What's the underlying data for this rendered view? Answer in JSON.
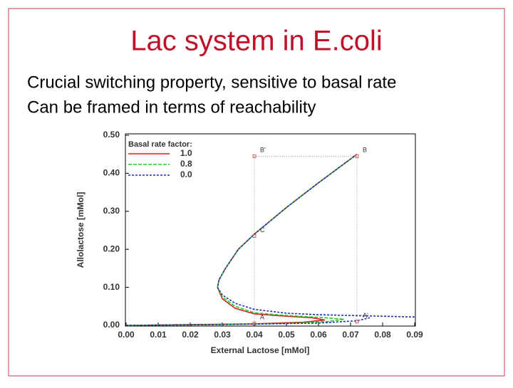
{
  "slide": {
    "title": "Lac system in E.coli",
    "bullets": [
      "Crucial switching property, sensitive to basal rate",
      "Can be framed in terms of reachability"
    ]
  },
  "chart_data": {
    "type": "line",
    "xlabel": "External Lactose [mMol]",
    "ylabel": "Allolactose [mMol]",
    "legend_title": "Basal rate factor:",
    "legend": "upper left",
    "xlim": [
      0,
      0.09
    ],
    "ylim": [
      0,
      0.5
    ],
    "xticks": [
      {
        "value": 0,
        "label": "0.00"
      },
      {
        "value": 0.01,
        "label": "0.01"
      },
      {
        "value": 0.02,
        "label": "0.02"
      },
      {
        "value": 0.03,
        "label": "0.03"
      },
      {
        "value": 0.04,
        "label": "0.04"
      },
      {
        "value": 0.05,
        "label": "0.05"
      },
      {
        "value": 0.06,
        "label": "0.06"
      },
      {
        "value": 0.07,
        "label": "0.07"
      },
      {
        "value": 0.08,
        "label": "0.08"
      },
      {
        "value": 0.09,
        "label": "0.09"
      }
    ],
    "yticks": [
      {
        "value": 0,
        "label": "0.00"
      },
      {
        "value": 0.1,
        "label": "0.10"
      },
      {
        "value": 0.2,
        "label": "0.20"
      },
      {
        "value": 0.3,
        "label": "0.30"
      },
      {
        "value": 0.4,
        "label": "0.40"
      },
      {
        "value": 0.5,
        "label": "0.50"
      }
    ],
    "series": [
      {
        "name": "1.0",
        "color": "#d42020",
        "dash": "none",
        "x": [
          0,
          0.02,
          0.04,
          0.055,
          0.062,
          0.058,
          0.05,
          0.04,
          0.034,
          0.03,
          0.0285,
          0.029,
          0.031,
          0.035,
          0.04,
          0.05,
          0.06,
          0.072
        ],
        "values": [
          0,
          0.002,
          0.004,
          0.008,
          0.014,
          0.02,
          0.024,
          0.03,
          0.045,
          0.07,
          0.1,
          0.12,
          0.15,
          0.2,
          0.24,
          0.31,
          0.375,
          0.45
        ]
      },
      {
        "name": "0.8",
        "color": "#22cc22",
        "dash": "5,2",
        "x": [
          0,
          0.03,
          0.05,
          0.063,
          0.068,
          0.062,
          0.05,
          0.04,
          0.034,
          0.03,
          0.0285,
          0.029,
          0.031,
          0.035,
          0.04,
          0.05,
          0.06,
          0.072
        ],
        "values": [
          0,
          0.002,
          0.005,
          0.01,
          0.016,
          0.02,
          0.026,
          0.033,
          0.05,
          0.075,
          0.1,
          0.12,
          0.15,
          0.2,
          0.24,
          0.31,
          0.375,
          0.45
        ]
      },
      {
        "name": "0.0",
        "color": "#2233aa",
        "dash": "3,2",
        "x": [
          0.09,
          0.075,
          0.06,
          0.05,
          0.04,
          0.034,
          0.03,
          0.0285,
          0.029,
          0.031,
          0.035,
          0.04,
          0.05,
          0.06,
          0.072,
          null,
          0,
          0.03,
          0.06,
          0.072,
          0.076
        ],
        "values": [
          0.022,
          0.025,
          0.028,
          0.032,
          0.042,
          0.058,
          0.08,
          0.1,
          0.12,
          0.15,
          0.2,
          0.24,
          0.31,
          0.375,
          0.45,
          null,
          0,
          0.002,
          0.006,
          0.012,
          0.02
        ]
      }
    ],
    "annotations": [
      {
        "label": "B'",
        "x": 0.04,
        "y": 0.445
      },
      {
        "label": "B",
        "x": 0.072,
        "y": 0.445
      },
      {
        "label": "C",
        "x": 0.04,
        "y": 0.235
      },
      {
        "label": "A",
        "x": 0.04,
        "y": 0.005
      },
      {
        "label": "A'",
        "x": 0.072,
        "y": 0.01
      }
    ]
  }
}
